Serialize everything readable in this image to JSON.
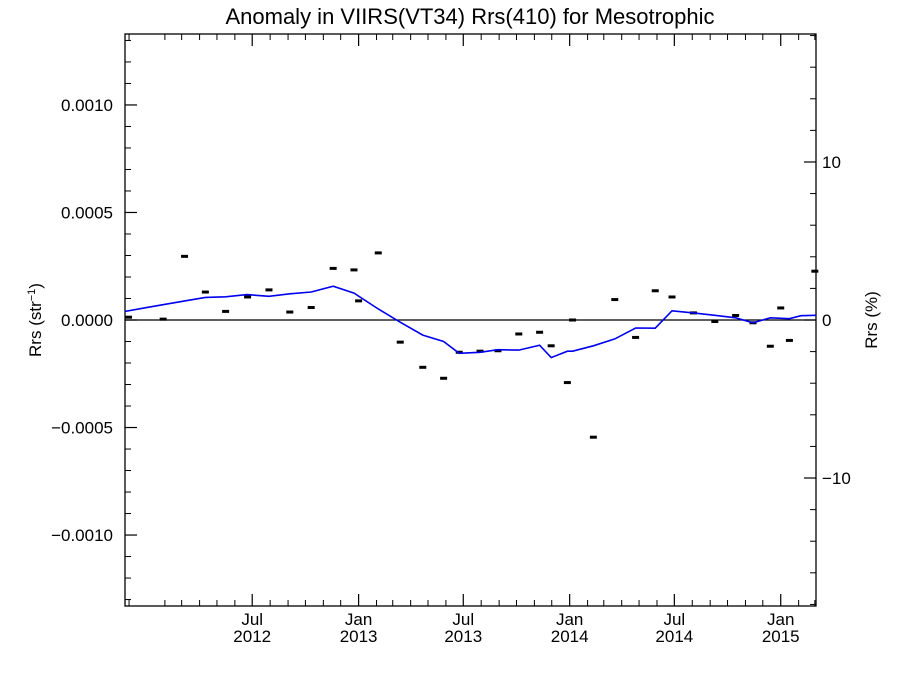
{
  "chart_data": {
    "type": "scatter",
    "title": "Anomaly in VIIRS(VT34) Rrs(410) for Mesotrophic",
    "ylabel": "Rrs (str",
    "ylabel_sup": "−1",
    "ylabel_close": ")",
    "y2label": "Rrs (%)",
    "xlim": [
      "2011-11-24",
      "2015-03-03"
    ],
    "ylim": [
      -0.00133,
      0.00133
    ],
    "y2lim": [
      -18.1,
      18.1
    ],
    "grid": false,
    "yticks": [
      {
        "value": 0.001,
        "label": "0.0010"
      },
      {
        "value": 0.0005,
        "label": "0.0005"
      },
      {
        "value": 0.0,
        "label": "0.0000"
      },
      {
        "value": -0.0005,
        "label": "−0.0005"
      },
      {
        "value": -0.001,
        "label": "−0.0010"
      }
    ],
    "y2ticks": [
      {
        "value": 10,
        "label": "10"
      },
      {
        "value": 0,
        "label": "0"
      },
      {
        "value": -10,
        "label": "−10"
      }
    ],
    "xticks": [
      {
        "date": "2012-07-01",
        "month": "Jul",
        "year": "2012"
      },
      {
        "date": "2013-01-01",
        "month": "Jan",
        "year": "2013"
      },
      {
        "date": "2013-07-01",
        "month": "Jul",
        "year": "2013"
      },
      {
        "date": "2014-01-01",
        "month": "Jan",
        "year": "2014"
      },
      {
        "date": "2014-07-01",
        "month": "Jul",
        "year": "2014"
      },
      {
        "date": "2015-01-01",
        "month": "Jan",
        "year": "2015"
      }
    ],
    "zero_line": true,
    "series": [
      {
        "style": "markers",
        "color": "#000000",
        "points": [
          {
            "x": "2011-11-30",
            "y": 1.3e-05
          },
          {
            "x": "2012-01-29",
            "y": 4e-06
          },
          {
            "x": "2012-03-06",
            "y": 0.000296
          },
          {
            "x": "2012-04-11",
            "y": 0.00013
          },
          {
            "x": "2012-05-16",
            "y": 4e-05
          },
          {
            "x": "2012-06-23",
            "y": 0.000107
          },
          {
            "x": "2012-07-30",
            "y": 0.00014
          },
          {
            "x": "2012-09-04",
            "y": 3.7e-05
          },
          {
            "x": "2012-10-11",
            "y": 5.8e-05
          },
          {
            "x": "2012-11-18",
            "y": 0.00024
          },
          {
            "x": "2012-12-24",
            "y": 0.000233
          },
          {
            "x": "2013-01-01",
            "y": 8.9e-05
          },
          {
            "x": "2013-02-04",
            "y": 0.000312
          },
          {
            "x": "2013-03-14",
            "y": -0.000103
          },
          {
            "x": "2013-04-22",
            "y": -0.00022
          },
          {
            "x": "2013-05-28",
            "y": -0.000271
          },
          {
            "x": "2013-06-24",
            "y": -0.00015
          },
          {
            "x": "2013-07-30",
            "y": -0.000145
          },
          {
            "x": "2013-08-30",
            "y": -0.000143
          },
          {
            "x": "2013-10-05",
            "y": -6.5e-05
          },
          {
            "x": "2013-11-10",
            "y": -5.7e-05
          },
          {
            "x": "2013-11-30",
            "y": -0.00012
          },
          {
            "x": "2013-12-28",
            "y": -0.000291
          },
          {
            "x": "2014-01-06",
            "y": 0.0
          },
          {
            "x": "2014-02-11",
            "y": -0.000545
          },
          {
            "x": "2014-03-20",
            "y": 9.5e-05
          },
          {
            "x": "2014-04-25",
            "y": -8.1e-05
          },
          {
            "x": "2014-05-29",
            "y": 0.000136
          },
          {
            "x": "2014-06-27",
            "y": 0.000107
          },
          {
            "x": "2014-08-03",
            "y": 3.3e-05
          },
          {
            "x": "2014-09-09",
            "y": -7e-06
          },
          {
            "x": "2014-10-15",
            "y": 2.1e-05
          },
          {
            "x": "2014-11-14",
            "y": -1.3e-05
          },
          {
            "x": "2014-12-14",
            "y": -0.000122
          },
          {
            "x": "2015-01-01",
            "y": 5.6e-05
          },
          {
            "x": "2015-01-16",
            "y": -9.5e-05
          },
          {
            "x": "2015-03-01",
            "y": 0.000227
          }
        ]
      },
      {
        "style": "line",
        "color": "#0000ee",
        "points": [
          {
            "x": "2011-11-24",
            "y": 4e-05
          },
          {
            "x": "2012-01-05",
            "y": 6e-05
          },
          {
            "x": "2012-03-05",
            "y": 8.8e-05
          },
          {
            "x": "2012-04-11",
            "y": 0.000105
          },
          {
            "x": "2012-05-16",
            "y": 0.000108
          },
          {
            "x": "2012-06-22",
            "y": 0.000118
          },
          {
            "x": "2012-07-30",
            "y": 0.00011
          },
          {
            "x": "2012-09-04",
            "y": 0.000122
          },
          {
            "x": "2012-10-11",
            "y": 0.00013
          },
          {
            "x": "2012-11-18",
            "y": 0.000157
          },
          {
            "x": "2012-12-24",
            "y": 0.000125
          },
          {
            "x": "2013-01-31",
            "y": 5.8e-05
          },
          {
            "x": "2013-03-14",
            "y": -1e-05
          },
          {
            "x": "2013-04-22",
            "y": -7e-05
          },
          {
            "x": "2013-05-28",
            "y": -0.0001
          },
          {
            "x": "2013-06-24",
            "y": -0.000155
          },
          {
            "x": "2013-07-30",
            "y": -0.00015
          },
          {
            "x": "2013-08-30",
            "y": -0.000138
          },
          {
            "x": "2013-10-05",
            "y": -0.00014
          },
          {
            "x": "2013-11-10",
            "y": -0.000117
          },
          {
            "x": "2013-11-30",
            "y": -0.000175
          },
          {
            "x": "2013-12-28",
            "y": -0.000145
          },
          {
            "x": "2014-01-06",
            "y": -0.000145
          },
          {
            "x": "2014-02-11",
            "y": -0.00012
          },
          {
            "x": "2014-03-20",
            "y": -8.8e-05
          },
          {
            "x": "2014-04-25",
            "y": -3.7e-05
          },
          {
            "x": "2014-05-29",
            "y": -3.8e-05
          },
          {
            "x": "2014-06-27",
            "y": 4.3e-05
          },
          {
            "x": "2014-08-03",
            "y": 3.3e-05
          },
          {
            "x": "2014-09-09",
            "y": 2.2e-05
          },
          {
            "x": "2014-10-15",
            "y": 1e-05
          },
          {
            "x": "2014-11-14",
            "y": -1.3e-05
          },
          {
            "x": "2014-12-14",
            "y": 1e-05
          },
          {
            "x": "2015-01-16",
            "y": 6e-06
          },
          {
            "x": "2015-02-05",
            "y": 2e-05
          },
          {
            "x": "2015-03-03",
            "y": 2.2e-05
          }
        ]
      }
    ]
  }
}
